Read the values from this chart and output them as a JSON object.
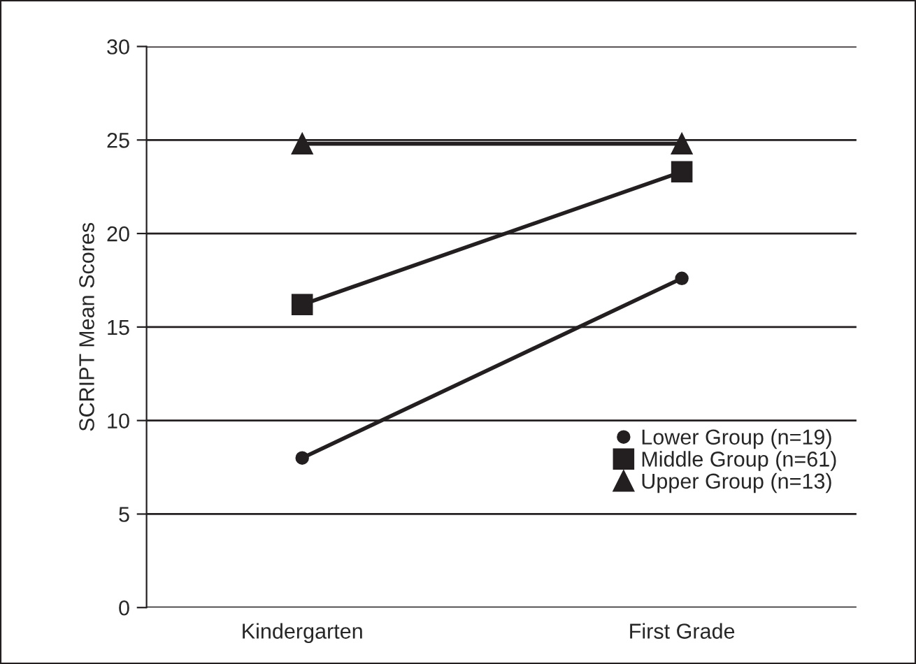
{
  "chart_data": {
    "type": "line",
    "ylabel": "SCRIPT Mean Scores",
    "categories": [
      "Kindergarten",
      "First Grade"
    ],
    "series": [
      {
        "name": "Lower Group (n=19)",
        "color": "#231f20",
        "marker": "circle",
        "values": [
          8.0,
          17.6
        ]
      },
      {
        "name": "Middle Group (n=61)",
        "color": "#231f20",
        "marker": "square",
        "values": [
          16.2,
          23.3
        ]
      },
      {
        "name": "Upper Group (n=13)",
        "color": "#231f20",
        "marker": "triangle",
        "values": [
          24.8,
          24.8
        ]
      }
    ],
    "ylim": [
      0,
      30
    ],
    "yticks": [
      0,
      5,
      10,
      15,
      20,
      25,
      30
    ],
    "grid": "y",
    "legend": "bottom right",
    "line_style": "solid"
  }
}
